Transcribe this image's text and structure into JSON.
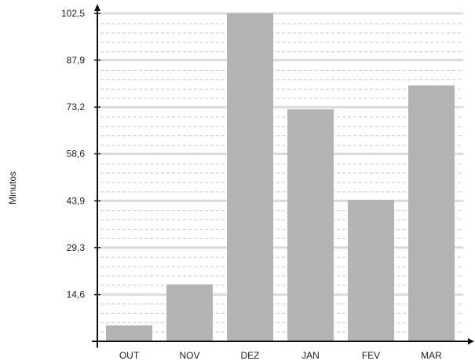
{
  "chart_data": {
    "type": "bar",
    "title": "",
    "xlabel": "",
    "ylabel": "Minutos",
    "categories": [
      "OUT",
      "NOV",
      "DEZ",
      "JAN",
      "FEV",
      "MAR"
    ],
    "values": [
      5.0,
      17.8,
      102.5,
      72.5,
      44.2,
      80.0
    ],
    "ylim": [
      0,
      102.5
    ],
    "yticks": [
      14.6,
      29.3,
      43.9,
      58.6,
      73.2,
      87.9,
      102.5
    ],
    "ytick_labels": [
      "14,6",
      "29,3",
      "43,9",
      "58,6",
      "73,2",
      "87,9",
      "102,5"
    ],
    "grid": true,
    "legend": "none",
    "colors": {
      "bar": "#b3b3b3",
      "major_grid": "#dcdcdc",
      "minor_grid": "#c8c8c8",
      "axis": "#111111"
    }
  }
}
